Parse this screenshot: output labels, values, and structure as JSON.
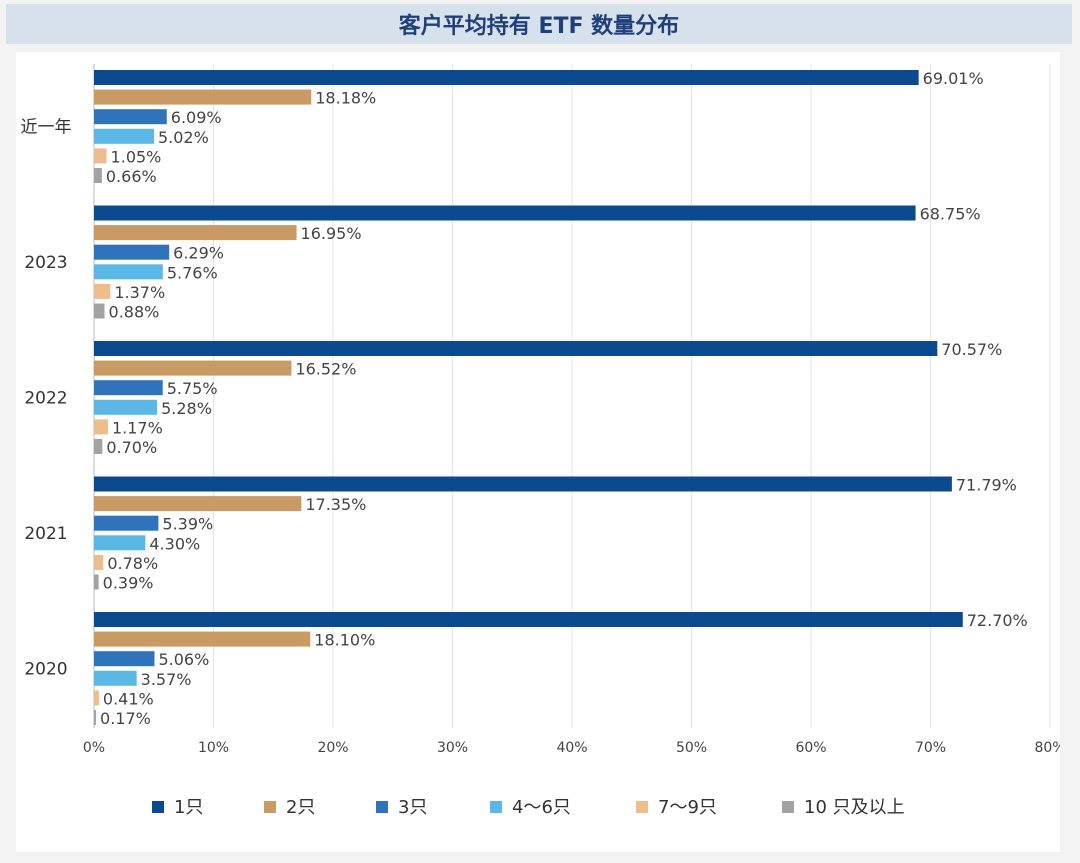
{
  "header": {
    "title": "客户平均持有 ETF 数量分布"
  },
  "chart_data": {
    "type": "bar",
    "orientation": "horizontal",
    "title": "客户平均持有 ETF 数量分布",
    "categories": [
      "近一年",
      "2023",
      "2022",
      "2021",
      "2020"
    ],
    "series": [
      {
        "name": "1只",
        "color": "#0b4a8f",
        "values": [
          69.01,
          68.75,
          70.57,
          71.79,
          72.7
        ]
      },
      {
        "name": "2只",
        "color": "#c99a63",
        "values": [
          18.18,
          16.95,
          16.52,
          17.35,
          18.1
        ]
      },
      {
        "name": "3只",
        "color": "#2f73bd",
        "values": [
          6.09,
          6.29,
          5.75,
          5.39,
          5.06
        ]
      },
      {
        "name": "4～6只",
        "color": "#5bb8e6",
        "values": [
          5.02,
          5.76,
          5.28,
          4.3,
          3.57
        ]
      },
      {
        "name": "7～9只",
        "color": "#edbe8c",
        "values": [
          1.05,
          1.37,
          1.17,
          0.78,
          0.41
        ]
      },
      {
        "name": "10 只及以上",
        "color": "#a3a3a3",
        "values": [
          0.66,
          0.88,
          0.7,
          0.39,
          0.17
        ]
      }
    ],
    "value_labels": [
      [
        "69.01%",
        "18.18%",
        "6.09%",
        "5.02%",
        "1.05%",
        "0.66%"
      ],
      [
        "68.75%",
        "16.95%",
        "6.29%",
        "5.76%",
        "1.37%",
        "0.88%"
      ],
      [
        "70.57%",
        "16.52%",
        "5.75%",
        "5.28%",
        "1.17%",
        "0.70%"
      ],
      [
        "71.79%",
        "17.35%",
        "5.39%",
        "4.30%",
        "0.78%",
        "0.39%"
      ],
      [
        "72.70%",
        "18.10%",
        "5.06%",
        "3.57%",
        "0.41%",
        "0.17%"
      ]
    ],
    "xlim": [
      0,
      80
    ],
    "x_ticks": [
      "0%",
      "10%",
      "20%",
      "30%",
      "40%",
      "50%",
      "60%",
      "70%",
      "80%"
    ],
    "grid": "vertical",
    "legend_position": "bottom"
  }
}
